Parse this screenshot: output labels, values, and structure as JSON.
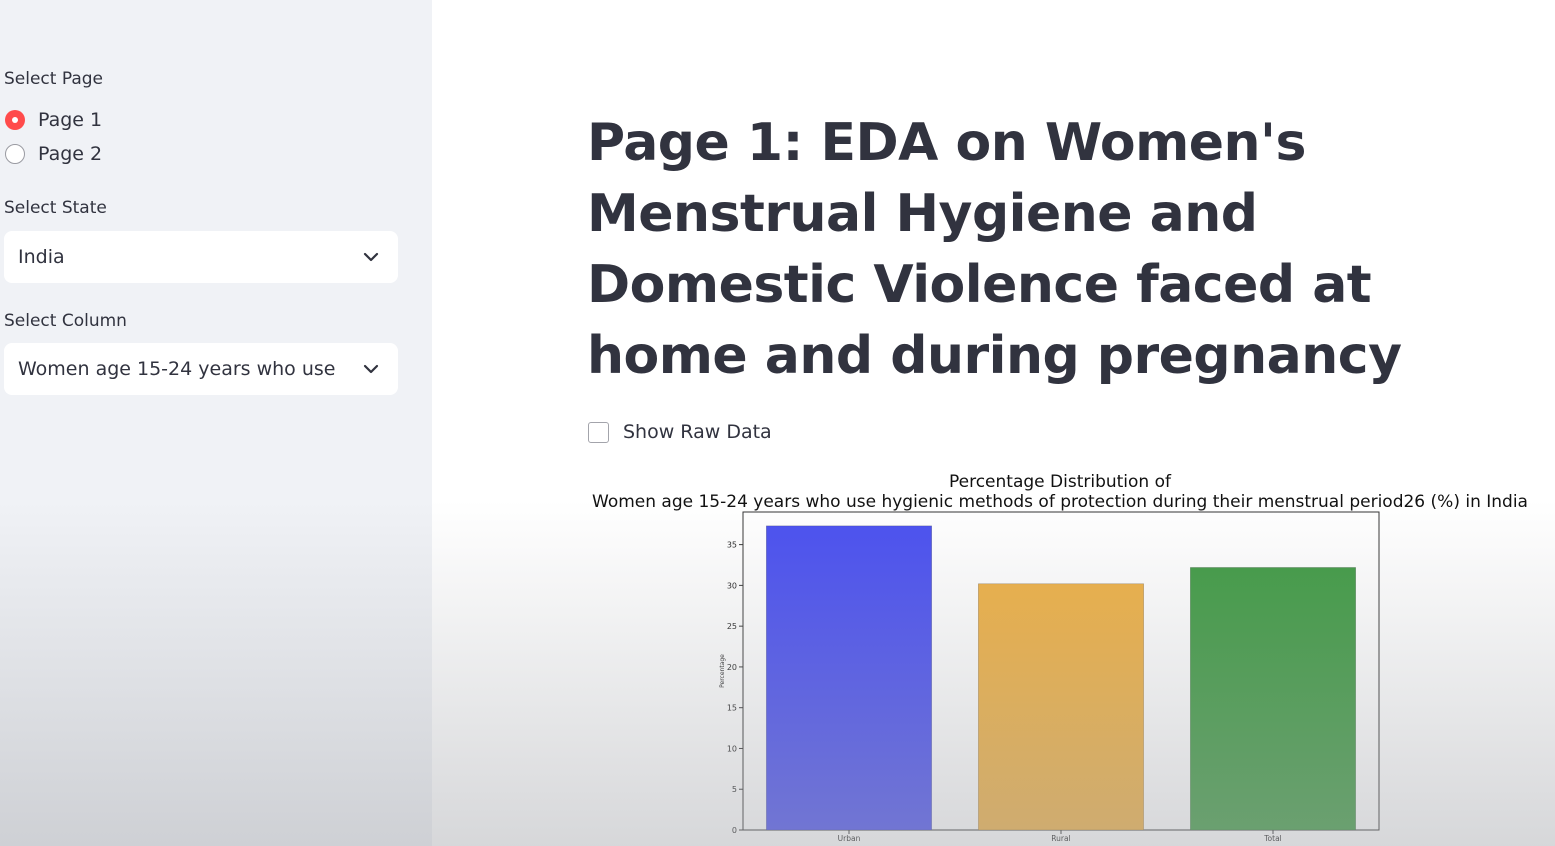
{
  "sidebar": {
    "page_label": "Select Page",
    "pages": [
      {
        "label": "Page 1",
        "selected": true
      },
      {
        "label": "Page 2",
        "selected": false
      }
    ],
    "state_label": "Select State",
    "state_value": "India",
    "column_label": "Select Column",
    "column_value": "Women age 15-24 years who use ..."
  },
  "main": {
    "title": "Page 1: EDA on Women's Menstrual Hygiene and Domestic Violence faced at home and during pregnancy",
    "raw_data_label": "Show Raw Data",
    "raw_data_checked": false
  },
  "colors": {
    "accent": "#ff4b4b",
    "sidebar_bg": "#f0f2f6",
    "text": "#31333f"
  },
  "chart_data": {
    "type": "bar",
    "title_line1": "Percentage Distribution of",
    "title_line2": "Women age 15-24 years who use hygienic methods of protection during their menstrual period26 (%) in India",
    "xlabel": "",
    "ylabel": "Percentage",
    "categories": [
      "Urban",
      "Rural",
      "Total"
    ],
    "values": [
      37.3,
      30.2,
      32.2
    ],
    "colors": [
      "#4a50f0",
      "#eeb043",
      "#3f9a43"
    ],
    "ylim": [
      0,
      39
    ],
    "yticks": [
      0,
      5,
      10,
      15,
      20,
      25,
      30,
      35
    ],
    "grid": false,
    "legend": false
  }
}
